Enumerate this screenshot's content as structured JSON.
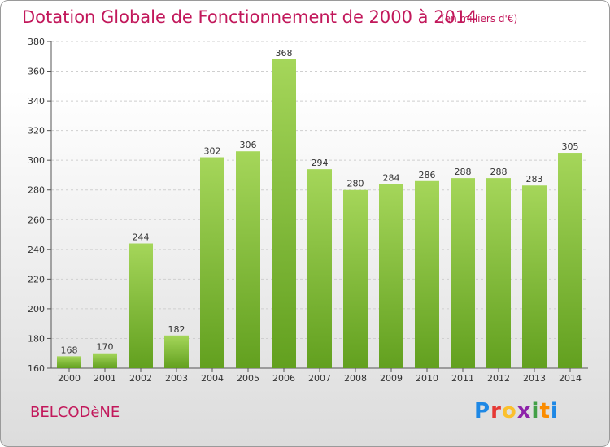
{
  "header": {
    "title": "Dotation Globale de Fonctionnement de 2000 à 2014",
    "subtitle": "(en milliers d'€)"
  },
  "footer": {
    "commune": "BELCODèNE",
    "brand": "Proxiti",
    "brand_letters": [
      {
        "ch": "P",
        "color": "#1e88e5"
      },
      {
        "ch": "r",
        "color": "#e53935"
      },
      {
        "ch": "o",
        "color": "#fbc02d"
      },
      {
        "ch": "x",
        "color": "#8e24aa"
      },
      {
        "ch": "i",
        "color": "#43a047"
      },
      {
        "ch": "t",
        "color": "#fb8c00"
      },
      {
        "ch": "i",
        "color": "#1e88e5"
      }
    ]
  },
  "colors": {
    "accent": "#c2185b",
    "bar_top": "#a5d65a",
    "bar_bottom": "#62a01f",
    "grid": "#cfcfcf"
  },
  "chart_data": {
    "type": "bar",
    "categories": [
      "2000",
      "2001",
      "2002",
      "2003",
      "2004",
      "2005",
      "2006",
      "2007",
      "2008",
      "2009",
      "2010",
      "2011",
      "2012",
      "2013",
      "2014"
    ],
    "values": [
      168,
      170,
      244,
      182,
      302,
      306,
      368,
      294,
      280,
      284,
      286,
      288,
      288,
      283,
      305
    ],
    "yticks": [
      160,
      180,
      200,
      220,
      240,
      260,
      280,
      300,
      320,
      340,
      360,
      380
    ],
    "ylim": [
      160,
      380
    ],
    "grid": true,
    "legend": "none"
  }
}
